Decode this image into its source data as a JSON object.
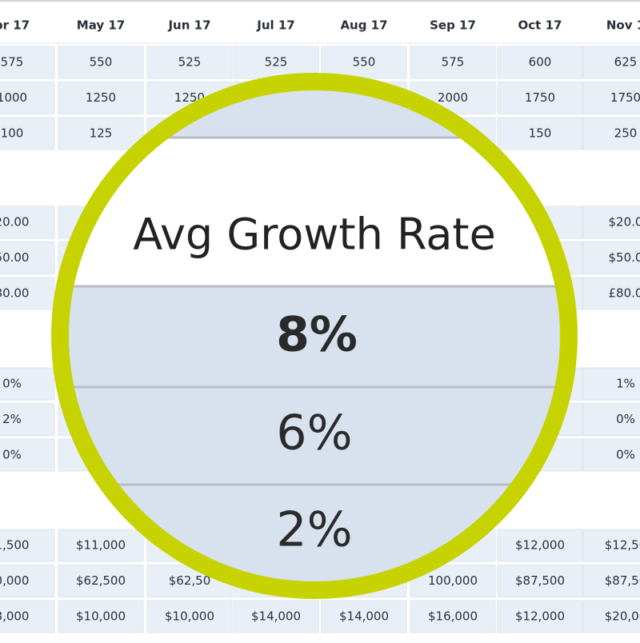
{
  "table": {
    "columns": [
      "pr 17",
      "May 17",
      "Jun 17",
      "Jul 17",
      "Aug 17",
      "Sep 17",
      "Oct 17",
      "Nov 1"
    ],
    "groups": [
      [
        [
          "575",
          "550",
          "525",
          "525",
          "550",
          "575",
          "600",
          "625"
        ],
        [
          "1000",
          "1250",
          "1250",
          null,
          null,
          "2000",
          "1750",
          "1750"
        ],
        [
          "100",
          "125",
          null,
          null,
          null,
          null,
          "150",
          "250"
        ]
      ],
      [
        [
          "20.00",
          null,
          null,
          null,
          null,
          null,
          null,
          "$20.0"
        ],
        [
          "50.00",
          null,
          null,
          null,
          null,
          null,
          null,
          "$50.0"
        ],
        [
          "80.00",
          null,
          null,
          null,
          null,
          null,
          null,
          "£80.0"
        ]
      ],
      [
        [
          "0%",
          null,
          null,
          null,
          null,
          null,
          null,
          "1%"
        ],
        [
          "2%",
          null,
          null,
          null,
          null,
          null,
          null,
          "0%"
        ],
        [
          "0%",
          null,
          null,
          null,
          null,
          null,
          null,
          "0%"
        ]
      ],
      [
        [
          "1,500",
          "$11,000",
          null,
          null,
          null,
          null,
          "$12,000",
          "$12,50"
        ],
        [
          "0,000",
          "$62,500",
          "$62,50",
          null,
          null,
          "100,000",
          "$87,500",
          "$87,50"
        ],
        [
          "8,000",
          "$10,000",
          "$10,000",
          "$14,000",
          "$14,000",
          "$16,000",
          "$12,000",
          "$20,00"
        ]
      ]
    ]
  },
  "magnifier": {
    "title": "Avg Growth Rate",
    "values": [
      "8%",
      "6%",
      "2%"
    ]
  }
}
